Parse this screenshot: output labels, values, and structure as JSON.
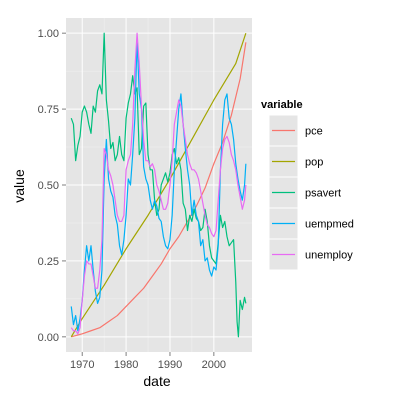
{
  "chart_data": {
    "type": "line",
    "xlabel": "date",
    "ylabel": "value",
    "xlim": [
      1966.3,
      2008.7
    ],
    "ylim": [
      -0.05,
      1.05
    ],
    "x_ticks": [
      1970,
      1980,
      1990,
      2000
    ],
    "x_tick_labels": [
      "1970",
      "1980",
      "1990",
      "2000"
    ],
    "y_ticks": [
      0,
      0.25,
      0.5,
      0.75,
      1
    ],
    "y_tick_labels": [
      "0.00",
      "0.25",
      "0.50",
      "0.75",
      "1.00"
    ],
    "grid": true,
    "legend": {
      "title": "variable",
      "position": "right"
    },
    "series": [
      {
        "name": "pce",
        "color": "#F8766D",
        "x": [
          1967.5,
          1970,
          1972,
          1974,
          1976,
          1978,
          1980,
          1982,
          1984,
          1986,
          1988,
          1990,
          1992,
          1994,
          1996,
          1998,
          2000,
          2002,
          2004,
          2006,
          2007.3
        ],
        "y": [
          0.0,
          0.01,
          0.02,
          0.03,
          0.05,
          0.07,
          0.1,
          0.13,
          0.16,
          0.2,
          0.24,
          0.29,
          0.33,
          0.38,
          0.43,
          0.49,
          0.57,
          0.64,
          0.73,
          0.85,
          0.97
        ]
      },
      {
        "name": "pop",
        "color": "#A3A500",
        "x": [
          1967.5,
          1970,
          1975,
          1980,
          1985,
          1990,
          1995,
          2000,
          2005,
          2007.3
        ],
        "y": [
          0.0,
          0.06,
          0.17,
          0.29,
          0.4,
          0.52,
          0.65,
          0.78,
          0.9,
          1.0
        ]
      },
      {
        "name": "psavert",
        "color": "#00BF7D",
        "x": [
          1967.5,
          1968,
          1968.5,
          1969,
          1969.5,
          1970,
          1970.5,
          1971,
          1971.5,
          1972,
          1972.5,
          1973,
          1973.5,
          1974,
          1974.5,
          1975,
          1975.5,
          1976,
          1976.5,
          1977,
          1977.5,
          1978,
          1978.5,
          1979,
          1979.5,
          1980,
          1980.5,
          1981,
          1981.5,
          1982,
          1982.5,
          1983,
          1983.5,
          1984,
          1984.5,
          1985,
          1985.5,
          1986,
          1986.5,
          1987,
          1987.5,
          1988,
          1988.5,
          1989,
          1989.5,
          1990,
          1990.5,
          1991,
          1991.5,
          1992,
          1992.5,
          1993,
          1993.5,
          1994,
          1994.5,
          1995,
          1995.5,
          1996,
          1996.5,
          1997,
          1997.5,
          1998,
          1998.5,
          1999,
          1999.5,
          2000,
          2000.5,
          2001,
          2001.5,
          2002,
          2002.5,
          2003,
          2003.5,
          2004,
          2004.5,
          2005,
          2005.3,
          2005.6,
          2006,
          2006.5,
          2007,
          2007.3
        ],
        "y": [
          0.72,
          0.7,
          0.58,
          0.63,
          0.66,
          0.74,
          0.76,
          0.74,
          0.7,
          0.67,
          0.76,
          0.74,
          0.81,
          0.83,
          0.8,
          1.0,
          0.78,
          0.71,
          0.62,
          0.64,
          0.58,
          0.6,
          0.66,
          0.6,
          0.58,
          0.72,
          0.77,
          0.8,
          0.86,
          0.8,
          0.82,
          0.6,
          0.62,
          0.76,
          0.77,
          0.6,
          0.55,
          0.55,
          0.45,
          0.4,
          0.42,
          0.5,
          0.52,
          0.54,
          0.51,
          0.54,
          0.6,
          0.62,
          0.57,
          0.59,
          0.55,
          0.44,
          0.42,
          0.35,
          0.4,
          0.38,
          0.42,
          0.39,
          0.38,
          0.35,
          0.36,
          0.42,
          0.38,
          0.3,
          0.26,
          0.25,
          0.24,
          0.31,
          0.4,
          0.36,
          0.38,
          0.33,
          0.3,
          0.31,
          0.32,
          0.18,
          0.05,
          0.0,
          0.12,
          0.09,
          0.13,
          0.11
        ]
      },
      {
        "name": "uempmed",
        "color": "#00B0F6",
        "x": [
          1967.5,
          1968,
          1968.5,
          1969,
          1969.5,
          1970,
          1970.5,
          1971,
          1971.5,
          1972,
          1972.5,
          1973,
          1973.5,
          1974,
          1974.5,
          1975,
          1975.5,
          1976,
          1976.5,
          1977,
          1977.5,
          1978,
          1978.5,
          1979,
          1979.5,
          1980,
          1980.5,
          1981,
          1981.5,
          1982,
          1982.5,
          1983,
          1983.5,
          1984,
          1984.5,
          1985,
          1985.5,
          1986,
          1986.5,
          1987,
          1987.5,
          1988,
          1988.5,
          1989,
          1989.5,
          1990,
          1990.5,
          1991,
          1991.5,
          1992,
          1992.5,
          1993,
          1993.5,
          1994,
          1994.5,
          1995,
          1995.5,
          1996,
          1996.5,
          1997,
          1997.5,
          1998,
          1998.5,
          1999,
          1999.5,
          2000,
          2000.5,
          2001,
          2001.5,
          2002,
          2002.5,
          2003,
          2003.5,
          2004,
          2004.5,
          2005,
          2005.5,
          2006,
          2006.5,
          2007,
          2007.3
        ],
        "y": [
          0.1,
          0.04,
          0.07,
          0.02,
          0.06,
          0.12,
          0.22,
          0.3,
          0.25,
          0.3,
          0.22,
          0.15,
          0.11,
          0.13,
          0.22,
          0.52,
          0.65,
          0.52,
          0.48,
          0.46,
          0.4,
          0.37,
          0.3,
          0.27,
          0.32,
          0.4,
          0.52,
          0.5,
          0.6,
          0.72,
          0.98,
          0.8,
          0.75,
          0.56,
          0.52,
          0.5,
          0.45,
          0.42,
          0.45,
          0.43,
          0.39,
          0.38,
          0.33,
          0.3,
          0.29,
          0.32,
          0.4,
          0.55,
          0.65,
          0.75,
          0.8,
          0.7,
          0.62,
          0.55,
          0.5,
          0.4,
          0.45,
          0.4,
          0.38,
          0.3,
          0.32,
          0.25,
          0.26,
          0.22,
          0.2,
          0.23,
          0.22,
          0.3,
          0.55,
          0.7,
          0.78,
          0.8,
          0.72,
          0.7,
          0.65,
          0.57,
          0.52,
          0.48,
          0.45,
          0.5,
          0.57
        ]
      },
      {
        "name": "unemploy",
        "color": "#E76BF3",
        "x": [
          1967.5,
          1968,
          1968.5,
          1969,
          1969.5,
          1970,
          1970.5,
          1971,
          1971.5,
          1972,
          1972.5,
          1973,
          1973.5,
          1974,
          1974.5,
          1975,
          1975.5,
          1976,
          1976.5,
          1977,
          1977.5,
          1978,
          1978.5,
          1979,
          1979.5,
          1980,
          1980.5,
          1981,
          1981.5,
          1982,
          1982.5,
          1983,
          1983.5,
          1984,
          1984.5,
          1985,
          1985.5,
          1986,
          1986.5,
          1987,
          1987.5,
          1988,
          1988.5,
          1989,
          1989.5,
          1990,
          1990.5,
          1991,
          1991.5,
          1992,
          1992.5,
          1993,
          1993.5,
          1994,
          1994.5,
          1995,
          1995.5,
          1996,
          1996.5,
          1997,
          1997.5,
          1998,
          1998.5,
          1999,
          1999.5,
          2000,
          2000.5,
          2001,
          2001.5,
          2002,
          2002.5,
          2003,
          2003.5,
          2004,
          2004.5,
          2005,
          2005.5,
          2006,
          2006.5,
          2007,
          2007.3
        ],
        "y": [
          0.03,
          0.02,
          0.02,
          0.01,
          0.03,
          0.12,
          0.2,
          0.25,
          0.24,
          0.24,
          0.2,
          0.16,
          0.16,
          0.22,
          0.32,
          0.62,
          0.6,
          0.55,
          0.53,
          0.5,
          0.45,
          0.4,
          0.38,
          0.38,
          0.4,
          0.55,
          0.58,
          0.6,
          0.7,
          0.88,
          1.0,
          0.9,
          0.76,
          0.65,
          0.58,
          0.58,
          0.56,
          0.57,
          0.55,
          0.5,
          0.48,
          0.45,
          0.42,
          0.42,
          0.44,
          0.5,
          0.58,
          0.7,
          0.74,
          0.78,
          0.76,
          0.7,
          0.65,
          0.6,
          0.57,
          0.55,
          0.55,
          0.54,
          0.52,
          0.48,
          0.44,
          0.4,
          0.37,
          0.36,
          0.34,
          0.33,
          0.35,
          0.45,
          0.55,
          0.62,
          0.65,
          0.66,
          0.64,
          0.6,
          0.58,
          0.55,
          0.5,
          0.46,
          0.42,
          0.45,
          0.5
        ]
      }
    ]
  }
}
